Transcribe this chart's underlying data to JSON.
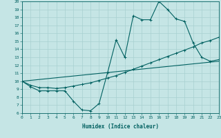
{
  "xlabel": "Humidex (Indice chaleur)",
  "xlim": [
    0,
    23
  ],
  "ylim": [
    6,
    20
  ],
  "xticks": [
    0,
    1,
    2,
    3,
    4,
    5,
    6,
    7,
    8,
    9,
    10,
    11,
    12,
    13,
    14,
    15,
    16,
    17,
    18,
    19,
    20,
    21,
    22,
    23
  ],
  "yticks": [
    6,
    7,
    8,
    9,
    10,
    11,
    12,
    13,
    14,
    15,
    16,
    17,
    18,
    19,
    20
  ],
  "bg_color": "#c5e5e5",
  "line_color": "#006060",
  "grid_color": "#a8d0d0",
  "line1_x": [
    0,
    1,
    2,
    3,
    4,
    5,
    6,
    7,
    8,
    9,
    10,
    11,
    12,
    13,
    14,
    15,
    16,
    17,
    18,
    19,
    20,
    21,
    22,
    23
  ],
  "line1_y": [
    10.0,
    9.3,
    8.8,
    8.8,
    8.8,
    8.8,
    7.5,
    6.4,
    6.3,
    7.2,
    11.1,
    15.2,
    13.0,
    18.2,
    17.7,
    17.7,
    20.0,
    19.0,
    17.8,
    17.5,
    14.8,
    13.0,
    12.5,
    12.7
  ],
  "line2_x": [
    0,
    1,
    2,
    3,
    4,
    5,
    6,
    7,
    8,
    9,
    10,
    11,
    12,
    13,
    14,
    15,
    16,
    17,
    18,
    19,
    20,
    21,
    22,
    23
  ],
  "line2_y": [
    10.0,
    9.5,
    9.2,
    9.2,
    9.1,
    9.2,
    9.4,
    9.6,
    9.8,
    10.1,
    10.4,
    10.7,
    11.1,
    11.5,
    11.9,
    12.3,
    12.7,
    13.1,
    13.5,
    13.9,
    14.3,
    14.8,
    15.1,
    15.5
  ],
  "line3_x": [
    0,
    23
  ],
  "line3_y": [
    10.0,
    12.5
  ]
}
